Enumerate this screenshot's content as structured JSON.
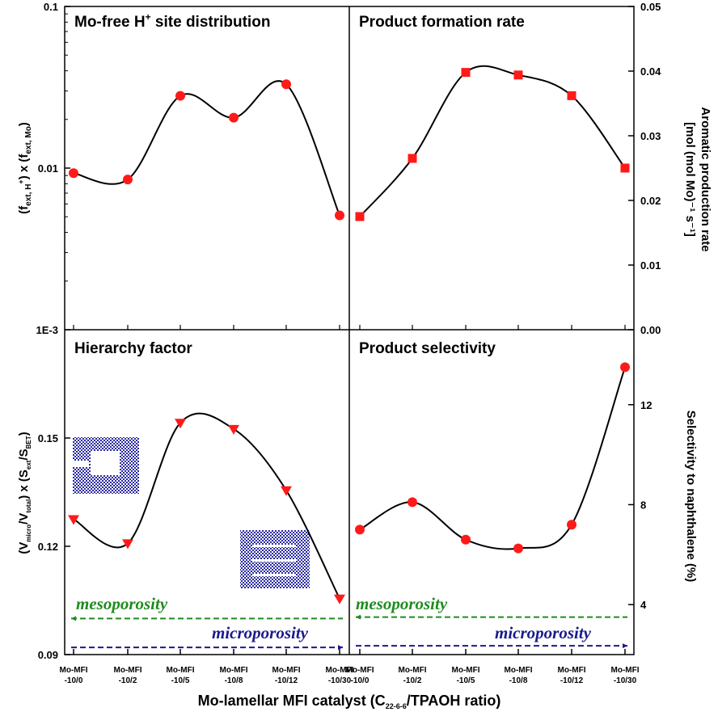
{
  "colors": {
    "marker": "#ff1a1a",
    "curve": "#000000",
    "mesoporosity": "#1e8c1e",
    "microporosity": "#1a1a8c",
    "schematic": "#2a2aa0"
  },
  "x_axis": {
    "label_main": "Mo-lamellar MFI catalyst (C",
    "label_sub": "22-6-6",
    "label_tail": "/TPAOH ratio)",
    "categories": [
      {
        "line1": "Mo-MFI",
        "line2": "-10/0"
      },
      {
        "line1": "Mo-MFI",
        "line2": "-10/2"
      },
      {
        "line1": "Mo-MFI",
        "line2": "-10/5"
      },
      {
        "line1": "Mo-MFI",
        "line2": "-10/8"
      },
      {
        "line1": "Mo-MFI",
        "line2": "-10/12"
      },
      {
        "line1": "Mo-MFI",
        "line2": "-10/30"
      }
    ]
  },
  "annotations": {
    "mesoporosity": "mesoporosity",
    "microporosity": "microporosity",
    "schematic_top": "open-lamellar-structure-icon",
    "schematic_bottom": "dense-lamellar-structure-icon"
  },
  "chart_data": [
    {
      "id": "top-left",
      "type": "scatter",
      "title": "Mo-free H",
      "title_sup": "+",
      "title_tail": " site distribution",
      "ylabel": "(f_ext, H+) x (f_ext, Mo)",
      "yscale": "log",
      "ylim": [
        0.001,
        0.1
      ],
      "yticks": [
        "1E-3",
        "0.01",
        "0.1"
      ],
      "ytick_values": [
        0.001,
        0.01,
        0.1
      ],
      "marker": "circle",
      "values": [
        0.0093,
        0.0085,
        0.028,
        0.0205,
        0.033,
        0.0051
      ],
      "smooth_curve": true
    },
    {
      "id": "top-right",
      "type": "scatter",
      "title": "Product formation rate",
      "ylabel": "Aromatic production rate [mol (mol Mo)^-1 s^-1]",
      "ylabel_line1": "Aromatic production rate",
      "ylabel_line2": "[mol (mol Mo)⁻¹ s⁻¹]",
      "yscale": "linear",
      "ylim": [
        0,
        0.05
      ],
      "yticks": [
        "0.00",
        "0.01",
        "0.02",
        "0.03",
        "0.04",
        "0.05"
      ],
      "ytick_values": [
        0,
        0.01,
        0.02,
        0.03,
        0.04,
        0.05
      ],
      "marker": "square",
      "values": [
        0.0175,
        0.0265,
        0.0398,
        0.0394,
        0.0362,
        0.025
      ],
      "smooth_curve": true
    },
    {
      "id": "bottom-left",
      "type": "scatter",
      "title": "Hierarchy factor",
      "ylabel": "(V_micro/V_total) x (S_ext/S_BET)",
      "yscale": "linear",
      "ylim": [
        0.09,
        0.18
      ],
      "yticks": [
        "0.09",
        "0.12",
        "0.15"
      ],
      "ytick_values": [
        0.09,
        0.12,
        0.15
      ],
      "marker": "triangle-down",
      "values": [
        0.1275,
        0.1208,
        0.1542,
        0.1525,
        0.1355,
        0.1055
      ],
      "reference_lines": {
        "mesoporosity": 0.1,
        "microporosity": 0.092
      },
      "smooth_curve": true
    },
    {
      "id": "bottom-right",
      "type": "scatter",
      "title": "Product selectivity",
      "ylabel": "Selectivity to naphthalene (%)",
      "yscale": "linear",
      "ylim": [
        2,
        15
      ],
      "yticks": [
        "4",
        "8",
        "12"
      ],
      "ytick_values": [
        4,
        8,
        12
      ],
      "marker": "circle",
      "values": [
        7.0,
        8.1,
        6.6,
        6.25,
        7.2,
        13.5
      ],
      "reference_lines": {
        "mesoporosity": 3.5,
        "microporosity": 2.35
      },
      "smooth_curve": true
    }
  ]
}
